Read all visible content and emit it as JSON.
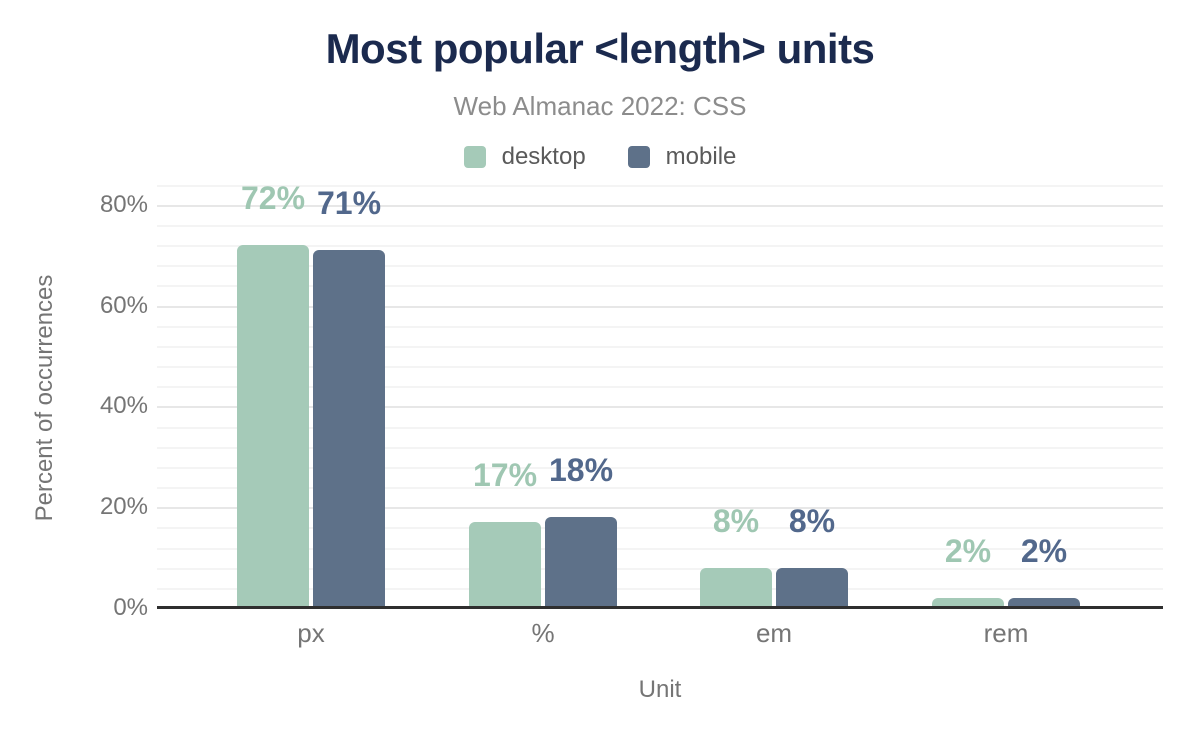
{
  "chart_data": {
    "type": "bar",
    "title": "Most popular <length> units",
    "subtitle": "Web Almanac 2022: CSS",
    "categories": [
      "px",
      "%",
      "em",
      "rem"
    ],
    "series": [
      {
        "name": "desktop",
        "color": "#a5cab8",
        "label_color": "#9fc7b2",
        "values": [
          72,
          17,
          8,
          2
        ]
      },
      {
        "name": "mobile",
        "color": "#5e7189",
        "label_color": "#52688c",
        "values": [
          71,
          18,
          8,
          2
        ]
      }
    ],
    "data_labels": {
      "desktop": [
        "72%",
        "17%",
        "8%",
        "2%"
      ],
      "mobile": [
        "71%",
        "18%",
        "8%",
        "2%"
      ]
    },
    "xlabel": "Unit",
    "ylabel": "Percent of occurrences",
    "yticks": [
      {
        "value": 0,
        "label": "0%"
      },
      {
        "value": 20,
        "label": "20%"
      },
      {
        "value": 40,
        "label": "40%"
      },
      {
        "value": 60,
        "label": "60%"
      },
      {
        "value": 80,
        "label": "80%"
      }
    ],
    "ylim": [
      0,
      84
    ],
    "value_suffix": "%",
    "grid": {
      "on": true,
      "major_step": 20,
      "minor_step": 4
    },
    "legend_position": "top",
    "colors": {
      "title": "#1b2a4e",
      "subtitle": "#8c8c8c",
      "axis_text": "#757575",
      "legend_text": "#5a5a5a",
      "axis_line": "#2f2f2f",
      "grid_major": "#e7e7e7",
      "grid_minor": "#f4f4f4"
    }
  }
}
